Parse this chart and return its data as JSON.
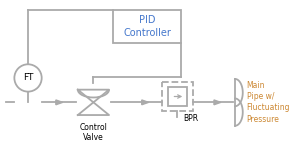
{
  "bg_color": "#ffffff",
  "line_color": "#aaaaaa",
  "pid_text_color": "#4477cc",
  "label_color": "#cc8833",
  "main_label_color": "#cc8833",
  "pid_label": "PID\nController",
  "ft_label": "FT",
  "cv_label": "Control\nValve",
  "bpr_label": "BPR",
  "main_label": "Main\nPipe w/\nFluctuating\nPressure"
}
